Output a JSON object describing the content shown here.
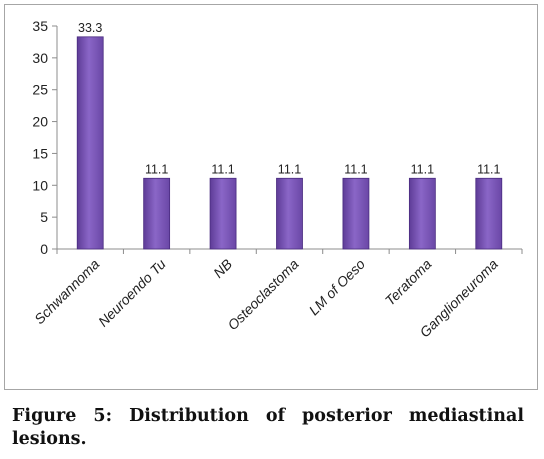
{
  "chart_data": {
    "type": "bar",
    "title": "",
    "xlabel": "",
    "ylabel": "",
    "categories": [
      "Schwannoma",
      "Neuroendo Tu",
      "NB",
      "Osteoclastoma",
      "LM of Oeso",
      "Teratoma",
      "Ganglioneuroma"
    ],
    "values": [
      33.3,
      11.1,
      11.1,
      11.1,
      11.1,
      11.1,
      11.1
    ],
    "data_labels": [
      "33.3",
      "11.1",
      "11.1",
      "11.1",
      "11.1",
      "11.1",
      "11.1"
    ],
    "ylim": [
      0,
      35
    ],
    "yticks": [
      0,
      5,
      10,
      15,
      20,
      25,
      30,
      35
    ],
    "grid": false,
    "legend": "none",
    "bar_color": "#7b55b8",
    "bar_edge_color": "#4a2c80"
  },
  "caption": "Figure 5: Distribution of posterior mediastinal lesions."
}
